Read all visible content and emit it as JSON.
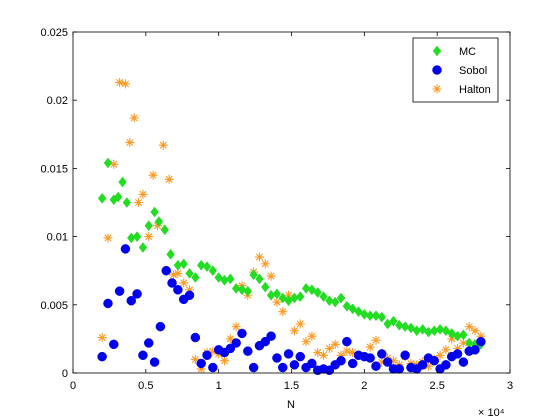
{
  "chart_data": {
    "type": "scatter",
    "xlabel": "N",
    "x_multiplier_label": "× 10⁴",
    "xlim": [
      0,
      3
    ],
    "ylim": [
      0,
      0.025
    ],
    "xticks": [
      "0",
      "0.5",
      "1",
      "1.5",
      "2",
      "2.5",
      "3"
    ],
    "yticks": [
      "0",
      "0.005",
      "0.01",
      "0.015",
      "0.02",
      "0.025"
    ],
    "grid": false,
    "legend_position": "top-right",
    "series": [
      {
        "name": "MC",
        "marker": "diamond",
        "color": "#22dd22",
        "points": [
          [
            0.2,
            0.0128
          ],
          [
            0.24,
            0.0154
          ],
          [
            0.28,
            0.0127
          ],
          [
            0.31,
            0.0129
          ],
          [
            0.34,
            0.014
          ],
          [
            0.37,
            0.0125
          ],
          [
            0.4,
            0.0099
          ],
          [
            0.44,
            0.01
          ],
          [
            0.48,
            0.0092
          ],
          [
            0.52,
            0.0108
          ],
          [
            0.56,
            0.0118
          ],
          [
            0.59,
            0.0111
          ],
          [
            0.63,
            0.0105
          ],
          [
            0.67,
            0.0087
          ],
          [
            0.72,
            0.0079
          ],
          [
            0.76,
            0.008
          ],
          [
            0.8,
            0.0073
          ],
          [
            0.84,
            0.007
          ],
          [
            0.88,
            0.0079
          ],
          [
            0.92,
            0.0078
          ],
          [
            0.96,
            0.0075
          ],
          [
            1.0,
            0.007
          ],
          [
            1.04,
            0.0068
          ],
          [
            1.08,
            0.0069
          ],
          [
            1.12,
            0.0062
          ],
          [
            1.16,
            0.0061
          ],
          [
            1.2,
            0.006
          ],
          [
            1.24,
            0.0072
          ],
          [
            1.28,
            0.0069
          ],
          [
            1.32,
            0.0063
          ],
          [
            1.36,
            0.0057
          ],
          [
            1.4,
            0.0058
          ],
          [
            1.44,
            0.0055
          ],
          [
            1.48,
            0.0053
          ],
          [
            1.52,
            0.0055
          ],
          [
            1.56,
            0.0056
          ],
          [
            1.6,
            0.0062
          ],
          [
            1.64,
            0.0061
          ],
          [
            1.68,
            0.0059
          ],
          [
            1.72,
            0.0056
          ],
          [
            1.76,
            0.0053
          ],
          [
            1.8,
            0.0052
          ],
          [
            1.84,
            0.0055
          ],
          [
            1.88,
            0.0049
          ],
          [
            1.92,
            0.0047
          ],
          [
            1.96,
            0.0045
          ],
          [
            2.0,
            0.0043
          ],
          [
            2.04,
            0.0042
          ],
          [
            2.08,
            0.0042
          ],
          [
            2.12,
            0.0041
          ],
          [
            2.16,
            0.0036
          ],
          [
            2.2,
            0.0038
          ],
          [
            2.24,
            0.0035
          ],
          [
            2.28,
            0.0034
          ],
          [
            2.32,
            0.0033
          ],
          [
            2.36,
            0.0031
          ],
          [
            2.4,
            0.0032
          ],
          [
            2.44,
            0.003
          ],
          [
            2.48,
            0.0031
          ],
          [
            2.52,
            0.0032
          ],
          [
            2.56,
            0.0031
          ],
          [
            2.6,
            0.0029
          ],
          [
            2.64,
            0.0027
          ],
          [
            2.68,
            0.0028
          ],
          [
            2.72,
            0.0022
          ],
          [
            2.76,
            0.0021
          ],
          [
            2.8,
            0.0021
          ]
        ]
      },
      {
        "name": "Sobol",
        "marker": "circle",
        "color": "#0000ee",
        "points": [
          [
            0.2,
            0.0012
          ],
          [
            0.24,
            0.0051
          ],
          [
            0.28,
            0.0021
          ],
          [
            0.32,
            0.006
          ],
          [
            0.36,
            0.0091
          ],
          [
            0.4,
            0.0053
          ],
          [
            0.44,
            0.0058
          ],
          [
            0.48,
            0.0013
          ],
          [
            0.52,
            0.0022
          ],
          [
            0.56,
            0.0008
          ],
          [
            0.6,
            0.0034
          ],
          [
            0.64,
            0.0075
          ],
          [
            0.68,
            0.0066
          ],
          [
            0.72,
            0.0061
          ],
          [
            0.76,
            0.0054
          ],
          [
            0.8,
            0.0057
          ],
          [
            0.84,
            0.0026
          ],
          [
            0.88,
            0.0007
          ],
          [
            0.92,
            0.0013
          ],
          [
            0.96,
            0.0004
          ],
          [
            1.0,
            0.0017
          ],
          [
            1.04,
            0.0015
          ],
          [
            1.08,
            0.0018
          ],
          [
            1.12,
            0.0022
          ],
          [
            1.16,
            0.0029
          ],
          [
            1.2,
            0.0016
          ],
          [
            1.24,
            0.0004
          ],
          [
            1.28,
            0.002
          ],
          [
            1.32,
            0.0023
          ],
          [
            1.36,
            0.0027
          ],
          [
            1.4,
            0.0011
          ],
          [
            1.44,
            0.0004
          ],
          [
            1.48,
            0.0014
          ],
          [
            1.52,
            0.0006
          ],
          [
            1.56,
            0.0012
          ],
          [
            1.6,
            0.0004
          ],
          [
            1.64,
            0.0007
          ],
          [
            1.68,
            0.0002
          ],
          [
            1.72,
            0.0003
          ],
          [
            1.76,
            0.0002
          ],
          [
            1.8,
            0.0006
          ],
          [
            1.84,
            0.0009
          ],
          [
            1.88,
            0.0023
          ],
          [
            1.92,
            0.0007
          ],
          [
            1.96,
            0.0013
          ],
          [
            2.0,
            0.0012
          ],
          [
            2.04,
            0.0011
          ],
          [
            2.08,
            0.0005
          ],
          [
            2.12,
            0.0014
          ],
          [
            2.16,
            0.0008
          ],
          [
            2.2,
            0.0003
          ],
          [
            2.24,
            0.0003
          ],
          [
            2.28,
            0.0013
          ],
          [
            2.32,
            0.0004
          ],
          [
            2.36,
            0.0003
          ],
          [
            2.4,
            0.0006
          ],
          [
            2.44,
            0.0011
          ],
          [
            2.48,
            0.0009
          ],
          [
            2.52,
            0.0003
          ],
          [
            2.56,
            0.0006
          ],
          [
            2.6,
            0.0012
          ],
          [
            2.64,
            0.0014
          ],
          [
            2.68,
            0.0008
          ],
          [
            2.72,
            0.0016
          ],
          [
            2.76,
            0.0017
          ],
          [
            2.8,
            0.0023
          ]
        ]
      },
      {
        "name": "Halton",
        "marker": "star",
        "color": "#ff9922",
        "points": [
          [
            0.2,
            0.0026
          ],
          [
            0.24,
            0.0099
          ],
          [
            0.28,
            0.0153
          ],
          [
            0.32,
            0.0213
          ],
          [
            0.36,
            0.0212
          ],
          [
            0.39,
            0.0169
          ],
          [
            0.42,
            0.0187
          ],
          [
            0.45,
            0.0125
          ],
          [
            0.48,
            0.0131
          ],
          [
            0.52,
            0.01
          ],
          [
            0.55,
            0.0145
          ],
          [
            0.58,
            0.0108
          ],
          [
            0.62,
            0.0167
          ],
          [
            0.66,
            0.0142
          ],
          [
            0.69,
            0.0072
          ],
          [
            0.72,
            0.0073
          ],
          [
            0.76,
            0.0066
          ],
          [
            0.8,
            0.0061
          ],
          [
            0.84,
            0.001
          ],
          [
            0.88,
            0.0003
          ],
          [
            0.92,
            0.0015
          ],
          [
            0.96,
            0.0016
          ],
          [
            1.0,
            0.0014
          ],
          [
            1.04,
            0.0009
          ],
          [
            1.08,
            0.0025
          ],
          [
            1.12,
            0.0034
          ],
          [
            1.16,
            0.0064
          ],
          [
            1.2,
            0.0057
          ],
          [
            1.24,
            0.0074
          ],
          [
            1.28,
            0.0085
          ],
          [
            1.32,
            0.008
          ],
          [
            1.36,
            0.0071
          ],
          [
            1.4,
            0.0052
          ],
          [
            1.44,
            0.0045
          ],
          [
            1.48,
            0.0057
          ],
          [
            1.52,
            0.0031
          ],
          [
            1.56,
            0.0036
          ],
          [
            1.6,
            0.0023
          ],
          [
            1.64,
            0.0027
          ],
          [
            1.68,
            0.0015
          ],
          [
            1.72,
            0.0013
          ],
          [
            1.76,
            0.0018
          ],
          [
            1.8,
            0.0021
          ],
          [
            1.84,
            0.0013
          ],
          [
            1.88,
            0.0016
          ],
          [
            1.92,
            0.0015
          ],
          [
            1.96,
            0.0013
          ],
          [
            2.0,
            0.0012
          ],
          [
            2.04,
            0.0019
          ],
          [
            2.08,
            0.0024
          ],
          [
            2.12,
            0.0008
          ],
          [
            2.16,
            0.0011
          ],
          [
            2.2,
            0.0009
          ],
          [
            2.24,
            0.0006
          ],
          [
            2.28,
            0.0012
          ],
          [
            2.32,
            0.0007
          ],
          [
            2.36,
            0.0006
          ],
          [
            2.4,
            0.0008
          ],
          [
            2.44,
            0.0005
          ],
          [
            2.48,
            0.001
          ],
          [
            2.52,
            0.0013
          ],
          [
            2.56,
            0.0017
          ],
          [
            2.6,
            0.0025
          ],
          [
            2.64,
            0.0018
          ],
          [
            2.68,
            0.0022
          ],
          [
            2.72,
            0.0034
          ],
          [
            2.76,
            0.0031
          ],
          [
            2.8,
            0.0027
          ]
        ]
      }
    ]
  }
}
